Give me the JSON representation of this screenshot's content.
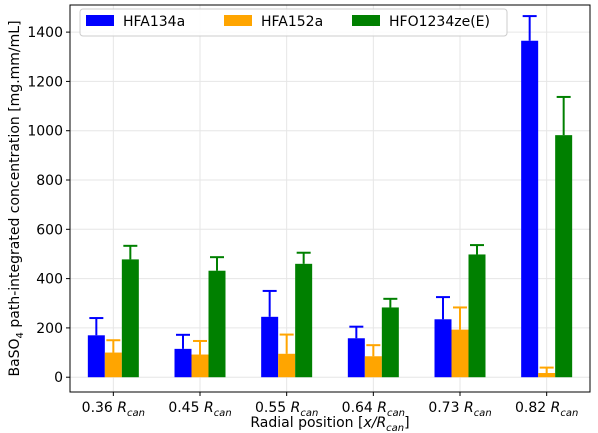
{
  "chart_data": {
    "type": "bar",
    "title": "",
    "xlabel": "Radial position [x/R_can]",
    "ylabel": "BaSO4 path-integrated concentration [mg.mm/mL]",
    "categories": [
      "0.36 R_can",
      "0.45 R_can",
      "0.55 R_can",
      "0.64 R_can",
      "0.73 R_can",
      "0.82 R_can"
    ],
    "series": [
      {
        "name": "HFA134a",
        "color": "#0000ff",
        "values": [
          170,
          115,
          245,
          158,
          235,
          1365
        ],
        "error": [
          70,
          57,
          105,
          47,
          90,
          100
        ]
      },
      {
        "name": "HFA152a",
        "color": "#ffa500",
        "values": [
          100,
          92,
          95,
          85,
          193,
          17
        ],
        "error": [
          50,
          55,
          78,
          45,
          90,
          22
        ]
      },
      {
        "name": "HFO1234ze(E)",
        "color": "#008000",
        "values": [
          478,
          432,
          460,
          283,
          498,
          982
        ],
        "error": [
          55,
          55,
          45,
          35,
          38,
          155
        ]
      }
    ],
    "ylim": [
      -60,
      1510
    ],
    "yticks": [
      0,
      200,
      400,
      600,
      800,
      1000,
      1200,
      1400
    ],
    "grid": true,
    "legend_position": "top"
  }
}
